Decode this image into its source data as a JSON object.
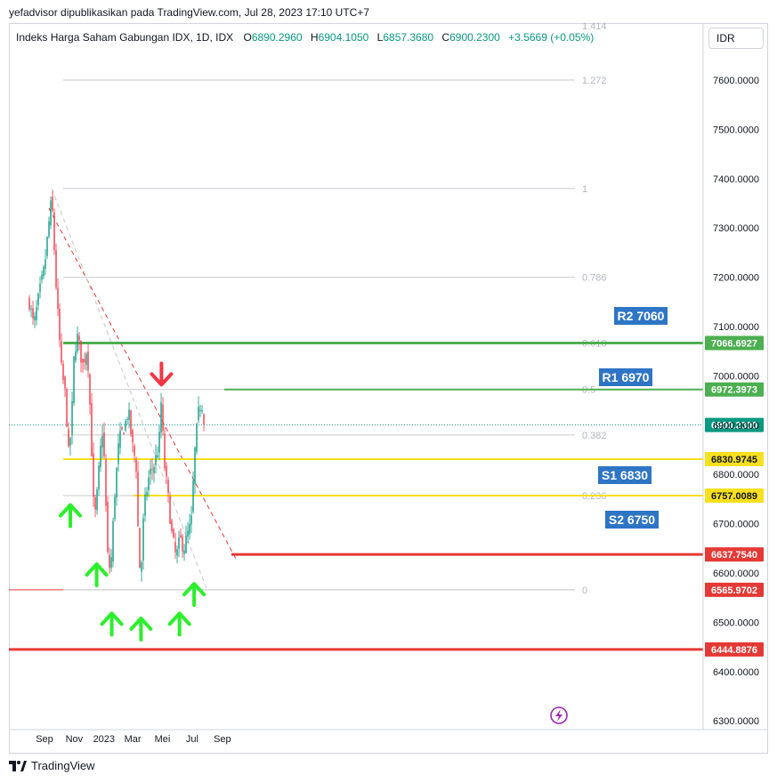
{
  "header": {
    "publish_line": "yefadvisor dipublikasikan pada TradingView.com, Jul 28, 2023 17:10 UTC+7",
    "currency": "IDR",
    "brand": "TradingView"
  },
  "legend": {
    "symbol": "Indeks Harga Saham Gabungan IDX, 1D, IDX",
    "open_key": "O",
    "open": "6890.2960",
    "high_key": "H",
    "high": "6904.1050",
    "low_key": "L",
    "low": "6857.3680",
    "close_key": "C",
    "close": "6900.2300",
    "change": "+3.5669 (+0.05%)"
  },
  "chart_data": {
    "type": "candlestick",
    "title": "",
    "x_tick_labels": [
      "Sep",
      "Nov",
      "2023",
      "Mar",
      "Mei",
      "Jul",
      "Sep"
    ],
    "y_tick_labels": [
      "6300.0000",
      "6400.0000",
      "6500.0000",
      "6600.0000",
      "6700.0000",
      "6800.0000",
      "6900.0000",
      "7000.0000",
      "7100.0000",
      "7200.0000",
      "7300.0000",
      "7400.0000",
      "7500.0000",
      "7600.0000"
    ],
    "ylim": [
      6270,
      7720
    ],
    "grid": false,
    "last_price": "6900.2300",
    "price_path": [
      [
        "2022-08-01",
        7150
      ],
      [
        "2022-08-10",
        7100
      ],
      [
        "2022-08-22",
        7170
      ],
      [
        "2022-09-01",
        7220
      ],
      [
        "2022-09-12",
        7330
      ],
      [
        "2022-09-16",
        7360
      ],
      [
        "2022-09-26",
        7160
      ],
      [
        "2022-10-06",
        7010
      ],
      [
        "2022-10-14",
        6960
      ],
      [
        "2022-10-21",
        6830
      ],
      [
        "2022-10-27",
        6920
      ],
      [
        "2022-11-01",
        7050
      ],
      [
        "2022-11-08",
        7080
      ],
      [
        "2022-11-18",
        7020
      ],
      [
        "2022-11-28",
        7060
      ],
      [
        "2022-12-05",
        6900
      ],
      [
        "2022-12-12",
        6700
      ],
      [
        "2022-12-18",
        6760
      ],
      [
        "2022-12-24",
        6840
      ],
      [
        "2022-12-30",
        6900
      ],
      [
        "2023-01-04",
        6760
      ],
      [
        "2023-01-10",
        6600
      ],
      [
        "2023-01-16",
        6630
      ],
      [
        "2023-01-23",
        6760
      ],
      [
        "2023-02-01",
        6870
      ],
      [
        "2023-02-13",
        6900
      ],
      [
        "2023-02-20",
        6930
      ],
      [
        "2023-02-28",
        6860
      ],
      [
        "2023-03-08",
        6820
      ],
      [
        "2023-03-14",
        6620
      ],
      [
        "2023-03-18",
        6600
      ],
      [
        "2023-03-24",
        6730
      ],
      [
        "2023-04-04",
        6800
      ],
      [
        "2023-04-14",
        6820
      ],
      [
        "2023-04-24",
        6860
      ],
      [
        "2023-04-28",
        6950
      ],
      [
        "2023-05-05",
        6820
      ],
      [
        "2023-05-12",
        6760
      ],
      [
        "2023-05-20",
        6680
      ],
      [
        "2023-05-29",
        6630
      ],
      [
        "2023-06-06",
        6670
      ],
      [
        "2023-06-14",
        6650
      ],
      [
        "2023-06-22",
        6680
      ],
      [
        "2023-06-29",
        6700
      ],
      [
        "2023-07-06",
        6840
      ],
      [
        "2023-07-13",
        6920
      ],
      [
        "2023-07-20",
        6950
      ],
      [
        "2023-07-27",
        6900
      ]
    ],
    "fibonacci": [
      {
        "label": "1.414",
        "price": 7740
      },
      {
        "label": "1.272",
        "price": 7600
      },
      {
        "label": "1",
        "price": 7380
      },
      {
        "label": "0.786",
        "price": 7200
      },
      {
        "label": "0.618",
        "price": 7066.69
      },
      {
        "label": "0.5",
        "price": 6972.4
      },
      {
        "label": "0.382",
        "price": 6880
      },
      {
        "label": "0.236",
        "price": 6757.01
      },
      {
        "label": "0",
        "price": 6565.97
      }
    ],
    "levels": [
      {
        "value": "7066.6927",
        "price": 7066.69,
        "color": "#4caf50"
      },
      {
        "value": "6972.3973",
        "price": 6972.4,
        "color": "#4caf50"
      },
      {
        "value": "6830.9745",
        "price": 6830.97,
        "color": "#f7e01d"
      },
      {
        "value": "6757.0089",
        "price": 6757.01,
        "color": "#f7e01d"
      },
      {
        "value": "6637.7540",
        "price": 6637.75,
        "color": "#e53935"
      },
      {
        "value": "6565.9702",
        "price": 6565.97,
        "color": "#e53935"
      },
      {
        "value": "6444.8876",
        "price": 6444.89,
        "color": "#e53935"
      }
    ],
    "annotations": [
      {
        "text": "R2 7060",
        "color": "#2e75c5"
      },
      {
        "text": "R1 6970",
        "color": "#2e75c5"
      },
      {
        "text": "S1 6830",
        "color": "#2e75c5"
      },
      {
        "text": "S2 6750",
        "color": "#2e75c5"
      }
    ],
    "trendlines": [
      {
        "style": "dashed",
        "color": "#e53935",
        "from": [
          "2022-09-10",
          7340
        ],
        "to": [
          "2023-09-28",
          6630
        ]
      },
      {
        "style": "dashed",
        "color": "#c8c8c8",
        "from": [
          "2022-09-16",
          7380
        ],
        "to": [
          "2023-07-30",
          6570
        ]
      }
    ],
    "signals": [
      {
        "direction": "up",
        "date": "2022-10-24",
        "price": 6720
      },
      {
        "direction": "up",
        "date": "2022-12-17",
        "price": 6600
      },
      {
        "direction": "up",
        "date": "2023-01-17",
        "price": 6500
      },
      {
        "direction": "up",
        "date": "2023-03-18",
        "price": 6490
      },
      {
        "direction": "down",
        "date": "2023-04-29",
        "price": 7000
      },
      {
        "direction": "up",
        "date": "2023-06-05",
        "price": 6500
      },
      {
        "direction": "up",
        "date": "2023-07-05",
        "price": 6560
      }
    ],
    "colors": {
      "up": "#089981",
      "down": "#f23645",
      "signal_up": "#2bef2b",
      "signal_down": "#f23645",
      "last": "#089981"
    }
  }
}
